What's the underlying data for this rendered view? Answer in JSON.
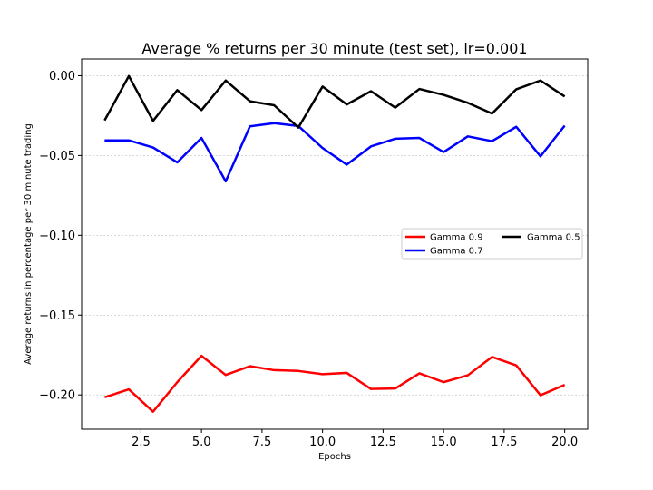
{
  "chart_data": {
    "type": "line",
    "title": "Average % returns per 30 minute (test set), lr=0.001",
    "xlabel": "Epochs",
    "ylabel": "Average returns in percentage per 30 minute trading",
    "xlim": [
      0.05,
      20.95
    ],
    "ylim": [
      -0.2215,
      0.0105
    ],
    "x": [
      1,
      2,
      3,
      4,
      5,
      6,
      7,
      8,
      9,
      10,
      11,
      12,
      13,
      14,
      15,
      16,
      17,
      18,
      19,
      20
    ],
    "xticks": [
      2.5,
      5.0,
      7.5,
      10.0,
      12.5,
      15.0,
      17.5,
      20.0
    ],
    "xtick_labels": [
      "2.5",
      "5.0",
      "7.5",
      "10.0",
      "12.5",
      "15.0",
      "17.5",
      "20.0"
    ],
    "yticks": [
      0.0,
      -0.05,
      -0.1,
      -0.15,
      -0.2
    ],
    "ytick_labels": [
      "0.00",
      "−0.05",
      "−0.10",
      "−0.15",
      "−0.20"
    ],
    "grid": "horizontal",
    "legend_position": "right",
    "series": [
      {
        "name": "Gamma 0.9",
        "color": "#ff0000",
        "values": [
          -0.2015,
          -0.1965,
          -0.2105,
          -0.192,
          -0.1755,
          -0.1875,
          -0.182,
          -0.1845,
          -0.185,
          -0.187,
          -0.1862,
          -0.1963,
          -0.196,
          -0.1865,
          -0.192,
          -0.1877,
          -0.1762,
          -0.1815,
          -0.2002,
          -0.1937
        ]
      },
      {
        "name": "Gamma 0.7",
        "color": "#0000ff",
        "values": [
          -0.0405,
          -0.0405,
          -0.045,
          -0.0543,
          -0.039,
          -0.0662,
          -0.0317,
          -0.0297,
          -0.0315,
          -0.0453,
          -0.0557,
          -0.0443,
          -0.0395,
          -0.039,
          -0.0478,
          -0.038,
          -0.041,
          -0.032,
          -0.0505,
          -0.0313
        ]
      },
      {
        "name": "Gamma 0.5",
        "color": "#000000",
        "values": [
          -0.028,
          -0.0002,
          -0.0283,
          -0.009,
          -0.0215,
          -0.003,
          -0.016,
          -0.0185,
          -0.0325,
          -0.0068,
          -0.018,
          -0.0097,
          -0.02,
          -0.0083,
          -0.012,
          -0.017,
          -0.0237,
          -0.0085,
          -0.003,
          -0.013
        ]
      }
    ]
  }
}
